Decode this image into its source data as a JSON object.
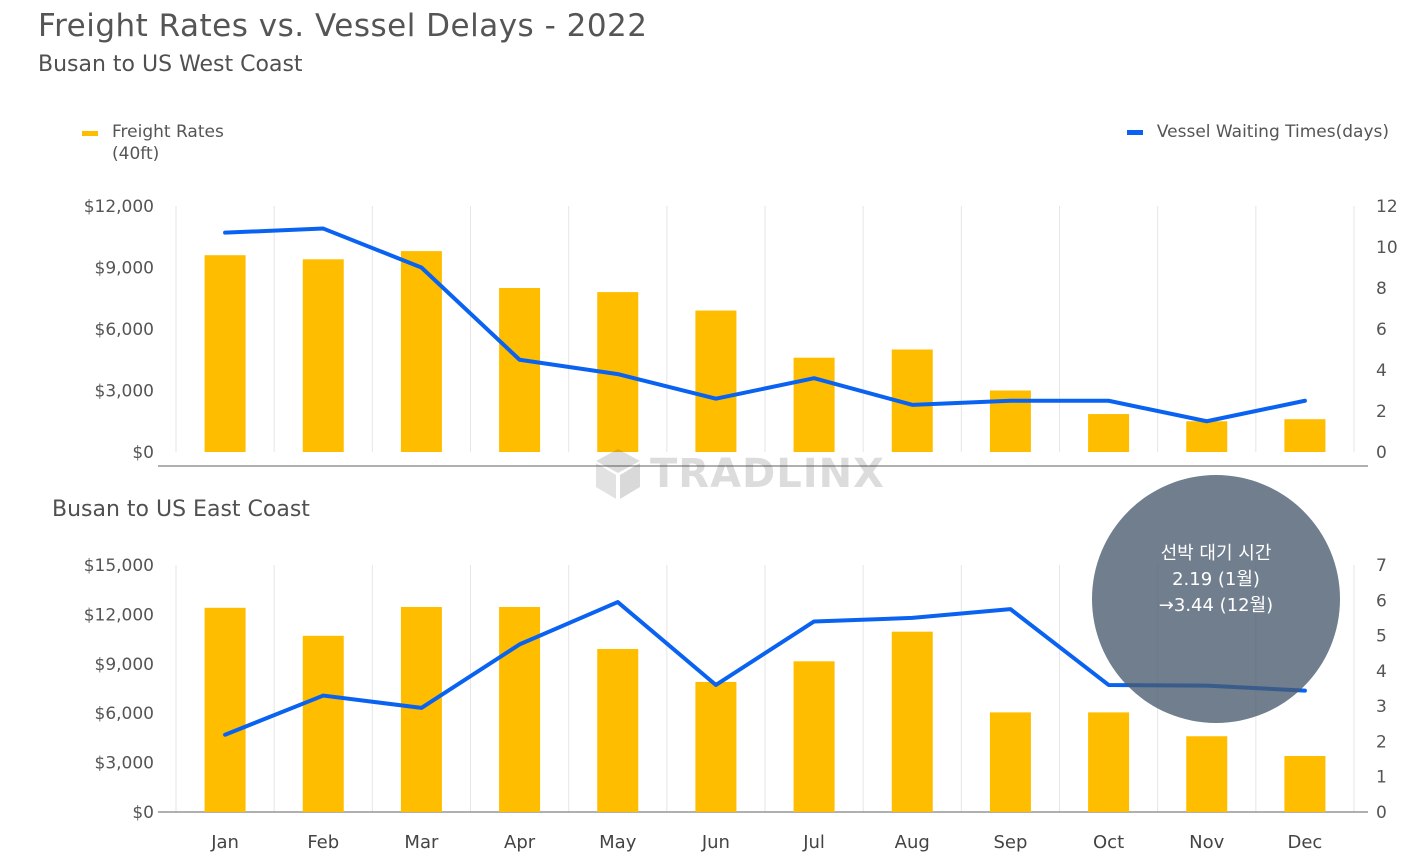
{
  "title": "Freight Rates vs. Vessel Delays - 2022",
  "subtitle_west": "Busan to US West Coast",
  "subtitle_east": "Busan to US East Coast",
  "legend": {
    "rate_label": "Freight Rates",
    "rate_sublabel": "(40ft)",
    "wait_label": "Vessel Waiting Times(days)"
  },
  "colors": {
    "bar": "#FFBD00",
    "line": "#0A63F0",
    "grid": "#E6E6E6",
    "axis": "#808080"
  },
  "callout": {
    "line1": "선박 대기 시간",
    "line2": "2.19 (1월)",
    "line3": "→3.44 (12월)"
  },
  "watermark": "TRADLINX",
  "chart_data": [
    {
      "type": "bar",
      "title": "Busan to US West Coast",
      "categories": [
        "Jan",
        "Feb",
        "Mar",
        "Apr",
        "May",
        "Jun",
        "Jul",
        "Aug",
        "Sep",
        "Oct",
        "Nov",
        "Dec"
      ],
      "series": [
        {
          "name": "Freight Rates (40ft)",
          "axis": "left",
          "values": [
            9600,
            9400,
            9800,
            8000,
            7800,
            6900,
            4600,
            5000,
            3000,
            1850,
            1500,
            1600
          ]
        },
        {
          "name": "Vessel Waiting Times(days)",
          "axis": "right",
          "type": "line",
          "values": [
            10.7,
            10.9,
            9.0,
            4.5,
            3.8,
            2.6,
            3.6,
            2.3,
            2.5,
            2.5,
            1.5,
            2.5
          ]
        }
      ],
      "ylim_left": [
        0,
        12000
      ],
      "yticks_left": [
        "$0",
        "$3,000",
        "$6,000",
        "$9,000",
        "$12,000"
      ],
      "ylim_right": [
        0,
        12
      ],
      "yticks_right": [
        "0",
        "2",
        "4",
        "6",
        "8",
        "10",
        "12"
      ]
    },
    {
      "type": "bar",
      "title": "Busan to US East Coast",
      "categories": [
        "Jan",
        "Feb",
        "Mar",
        "Apr",
        "May",
        "Jun",
        "Jul",
        "Aug",
        "Sep",
        "Oct",
        "Nov",
        "Dec"
      ],
      "series": [
        {
          "name": "Freight Rates (40ft)",
          "axis": "left",
          "values": [
            12400,
            10700,
            12450,
            12450,
            9900,
            7900,
            9150,
            10950,
            6050,
            6050,
            4600,
            3400
          ]
        },
        {
          "name": "Vessel Waiting Times(days)",
          "axis": "right",
          "type": "line",
          "values": [
            2.19,
            3.3,
            2.95,
            4.75,
            5.95,
            3.6,
            5.4,
            5.5,
            5.75,
            3.6,
            3.58,
            3.44
          ]
        }
      ],
      "ylim_left": [
        0,
        15000
      ],
      "yticks_left": [
        "$0",
        "$3,000",
        "$6,000",
        "$9,000",
        "$12,000",
        "$15,000"
      ],
      "ylim_right": [
        0,
        7
      ],
      "yticks_right": [
        "0",
        "1",
        "2",
        "3",
        "4",
        "5",
        "6",
        "7"
      ]
    }
  ]
}
